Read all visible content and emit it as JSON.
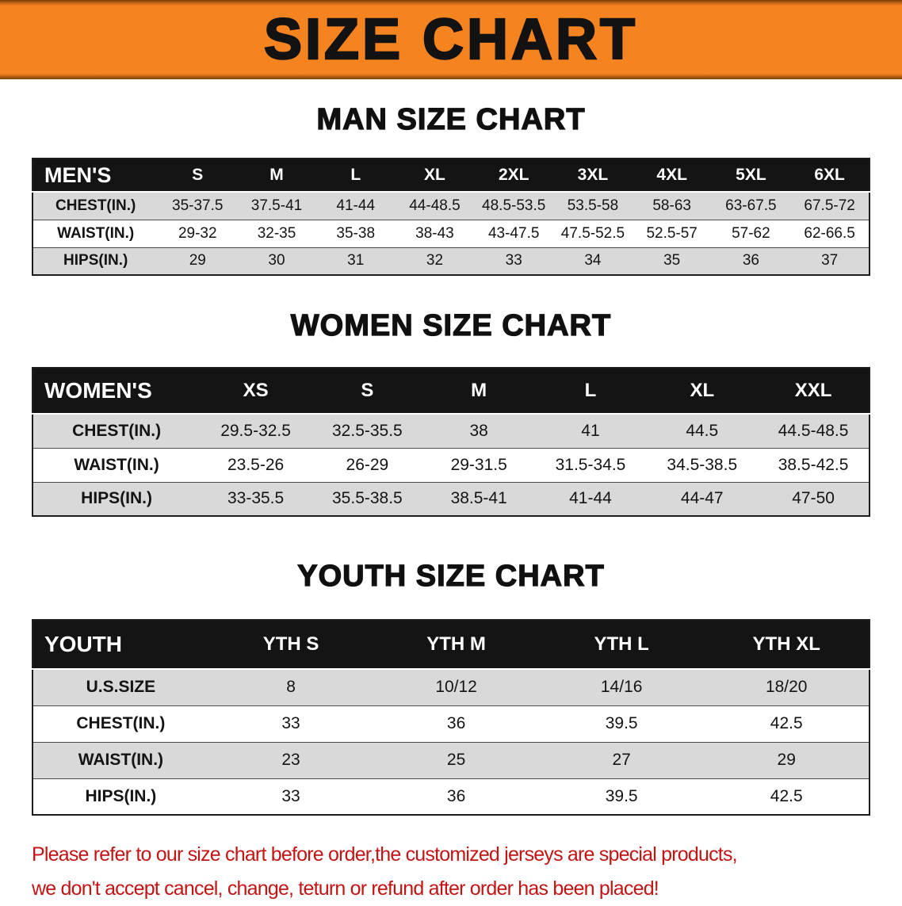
{
  "banner": {
    "title": "SIZE CHART"
  },
  "colors": {
    "banner_bg": "#f5831f",
    "banner_edge": "#7c3f08",
    "header_bg": "#141414",
    "header_text": "#ffffff",
    "row_alt_bg": "#d9d9d9",
    "footer_text": "#c31414"
  },
  "chart_data": [
    {
      "type": "table",
      "title": "MAN SIZE CHART",
      "columns": [
        "MEN'S",
        "S",
        "M",
        "L",
        "XL",
        "2XL",
        "3XL",
        "4XL",
        "5XL",
        "6XL"
      ],
      "rows": [
        [
          "CHEST(IN.)",
          "35-37.5",
          "37.5-41",
          "41-44",
          "44-48.5",
          "48.5-53.5",
          "53.5-58",
          "58-63",
          "63-67.5",
          "67.5-72"
        ],
        [
          "WAIST(IN.)",
          "29-32",
          "32-35",
          "35-38",
          "38-43",
          "43-47.5",
          "47.5-52.5",
          "52.5-57",
          "57-62",
          "62-66.5"
        ],
        [
          "HIPS(IN.)",
          "29",
          "30",
          "31",
          "32",
          "33",
          "34",
          "35",
          "36",
          "37"
        ]
      ]
    },
    {
      "type": "table",
      "title": "WOMEN SIZE CHART",
      "columns": [
        "WOMEN'S",
        "XS",
        "S",
        "M",
        "L",
        "XL",
        "XXL"
      ],
      "rows": [
        [
          "CHEST(IN.)",
          "29.5-32.5",
          "32.5-35.5",
          "38",
          "41",
          "44.5",
          "44.5-48.5"
        ],
        [
          "WAIST(IN.)",
          "23.5-26",
          "26-29",
          "29-31.5",
          "31.5-34.5",
          "34.5-38.5",
          "38.5-42.5"
        ],
        [
          "HIPS(IN.)",
          "33-35.5",
          "35.5-38.5",
          "38.5-41",
          "41-44",
          "44-47",
          "47-50"
        ]
      ]
    },
    {
      "type": "table",
      "title": "YOUTH SIZE CHART",
      "columns": [
        "YOUTH",
        "YTH S",
        "YTH M",
        "YTH L",
        "YTH XL"
      ],
      "rows": [
        [
          "U.S.SIZE",
          "8",
          "10/12",
          "14/16",
          "18/20"
        ],
        [
          "CHEST(IN.)",
          "33",
          "36",
          "39.5",
          "42.5"
        ],
        [
          "WAIST(IN.)",
          "23",
          "25",
          "27",
          "29"
        ],
        [
          "HIPS(IN.)",
          "33",
          "36",
          "39.5",
          "42.5"
        ]
      ]
    }
  ],
  "footer": {
    "line1": "Please refer to our size chart before order,the customized jerseys are special products,",
    "line2": "we don't accept cancel, change, teturn or refund after order has been placed!"
  }
}
